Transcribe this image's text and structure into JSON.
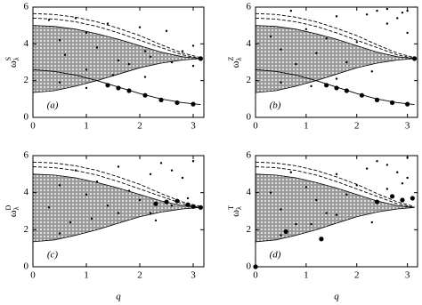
{
  "chart_data": [
    {
      "type": "line",
      "ylabel": {
        "base": "ω",
        "sub": "λ",
        "sup": "S"
      },
      "panel_label": "(a)",
      "xlim": [
        0,
        3.2
      ],
      "ylim": [
        0,
        6
      ],
      "xticks": [
        0,
        1,
        2,
        3
      ],
      "yticks": [
        0,
        2,
        4,
        6
      ],
      "x": [
        0,
        0.4,
        0.8,
        1.2,
        1.6,
        2.0,
        2.4,
        2.8,
        3.14
      ],
      "band": {
        "lower": [
          1.35,
          1.45,
          1.7,
          2.0,
          2.35,
          2.7,
          2.95,
          3.12,
          3.2
        ],
        "upper": [
          5.0,
          4.95,
          4.8,
          4.55,
          4.25,
          3.9,
          3.55,
          3.3,
          3.2
        ],
        "color": "#b8b8b8"
      },
      "dashed": [
        [
          5.65,
          5.6,
          5.45,
          5.2,
          4.85,
          4.45,
          3.95,
          3.5,
          3.25
        ],
        [
          5.4,
          5.35,
          5.2,
          4.95,
          4.6,
          4.2,
          3.8,
          3.4,
          3.2
        ]
      ],
      "curve": [
        2.6,
        2.5,
        2.3,
        2.0,
        1.65,
        1.3,
        1.0,
        0.8,
        0.7
      ],
      "points": {
        "x": [
          0.3,
          0.5,
          0.6,
          0.8,
          1.0,
          1.0,
          1.2,
          1.4,
          1.6,
          1.8,
          2.0,
          2.1,
          2.2,
          2.5,
          2.8,
          3.0,
          0.5,
          1.0,
          1.5,
          2.1,
          2.6,
          3.0
        ],
        "y": [
          5.3,
          4.2,
          3.4,
          5.4,
          2.6,
          4.6,
          3.8,
          5.1,
          3.1,
          2.9,
          4.9,
          3.6,
          3.3,
          4.7,
          3.6,
          3.9,
          1.9,
          1.6,
          2.3,
          2.2,
          3.0,
          2.8
        ]
      },
      "big_points": {
        "x": [
          1.4,
          1.6,
          1.8,
          2.1,
          2.4,
          2.7,
          3.0,
          3.14
        ],
        "y": [
          1.75,
          1.6,
          1.45,
          1.2,
          0.95,
          0.8,
          0.72,
          3.2
        ]
      },
      "color": "#000000"
    },
    {
      "type": "line",
      "ylabel": {
        "base": "ω",
        "sub": "λ",
        "sup": "Z"
      },
      "panel_label": "(b)",
      "xlim": [
        0,
        3.2
      ],
      "ylim": [
        0,
        6
      ],
      "xticks": [
        0,
        1,
        2,
        3
      ],
      "yticks": [
        0,
        2,
        4,
        6
      ],
      "x": [
        0,
        0.4,
        0.8,
        1.2,
        1.6,
        2.0,
        2.4,
        2.8,
        3.14
      ],
      "band": {
        "lower": [
          1.35,
          1.45,
          1.7,
          2.0,
          2.35,
          2.7,
          2.95,
          3.12,
          3.2
        ],
        "upper": [
          5.0,
          4.95,
          4.8,
          4.55,
          4.25,
          3.9,
          3.55,
          3.3,
          3.2
        ],
        "color": "#b8b8b8"
      },
      "dashed": [
        [
          5.65,
          5.6,
          5.45,
          5.2,
          4.85,
          4.45,
          3.95,
          3.5,
          3.25
        ],
        [
          5.4,
          5.35,
          5.2,
          4.95,
          4.6,
          4.2,
          3.8,
          3.4,
          3.2
        ]
      ],
      "curve": [
        2.6,
        2.5,
        2.3,
        2.0,
        1.65,
        1.3,
        1.0,
        0.8,
        0.7
      ],
      "points": {
        "x": [
          0.3,
          0.5,
          0.7,
          0.8,
          1.0,
          1.2,
          1.4,
          1.6,
          1.8,
          2.0,
          2.2,
          2.4,
          2.6,
          2.8,
          3.0,
          3.0,
          2.6,
          2.9,
          0.5,
          1.1,
          1.6,
          2.3
        ],
        "y": [
          4.4,
          3.7,
          5.8,
          2.9,
          4.8,
          3.5,
          4.3,
          5.5,
          3.0,
          4.1,
          5.6,
          5.8,
          5.9,
          5.4,
          4.6,
          5.8,
          5.1,
          5.7,
          1.9,
          1.7,
          2.1,
          2.5
        ]
      },
      "big_points": {
        "x": [
          1.4,
          1.6,
          1.8,
          2.1,
          2.4,
          2.7,
          3.0,
          3.14
        ],
        "y": [
          1.75,
          1.6,
          1.45,
          1.2,
          0.95,
          0.8,
          0.72,
          3.2
        ]
      },
      "color": "#000000"
    },
    {
      "type": "line",
      "ylabel": {
        "base": "ω",
        "sub": "λ",
        "sup": "D"
      },
      "panel_label": "(c)",
      "xlabel": "q",
      "xlim": [
        0,
        3.2
      ],
      "ylim": [
        0,
        6
      ],
      "xticks": [
        0,
        1,
        2,
        3
      ],
      "yticks": [
        0,
        2,
        4,
        6
      ],
      "x": [
        0,
        0.4,
        0.8,
        1.2,
        1.6,
        2.0,
        2.4,
        2.8,
        3.14
      ],
      "band": {
        "lower": [
          1.35,
          1.45,
          1.7,
          2.0,
          2.35,
          2.7,
          2.95,
          3.12,
          3.2
        ],
        "upper": [
          5.0,
          4.95,
          4.8,
          4.55,
          4.25,
          3.9,
          3.55,
          3.3,
          3.2
        ],
        "color": "#b8b8b8"
      },
      "dashed": [
        [
          5.65,
          5.6,
          5.45,
          5.2,
          4.85,
          4.45,
          3.95,
          3.5,
          3.25
        ],
        [
          5.4,
          5.35,
          5.2,
          4.95,
          4.6,
          4.2,
          3.8,
          3.4,
          3.2
        ]
      ],
      "points": {
        "x": [
          0.3,
          0.5,
          0.7,
          0.8,
          1.0,
          1.2,
          1.4,
          1.6,
          1.8,
          2.0,
          2.2,
          2.4,
          2.6,
          2.8,
          3.0,
          2.2,
          2.6,
          2.9,
          0.5,
          1.1,
          1.6,
          2.3
        ],
        "y": [
          3.2,
          4.4,
          2.4,
          5.2,
          3.9,
          4.6,
          3.3,
          5.4,
          4.1,
          3.6,
          5.0,
          5.6,
          5.2,
          4.8,
          5.7,
          2.9,
          3.3,
          3.7,
          1.8,
          2.6,
          2.9,
          2.5
        ]
      },
      "big_points": {
        "x": [
          2.3,
          2.5,
          2.7,
          2.9,
          3.0,
          3.14
        ],
        "y": [
          3.4,
          3.5,
          3.55,
          3.35,
          3.25,
          3.2
        ]
      },
      "color": "#000000"
    },
    {
      "type": "line",
      "ylabel": {
        "base": "ω",
        "sub": "λ",
        "sup": "T"
      },
      "panel_label": "(d)",
      "xlabel": "q",
      "xlim": [
        0,
        3.2
      ],
      "ylim": [
        0,
        6
      ],
      "xticks": [
        0,
        1,
        2,
        3
      ],
      "yticks": [
        0,
        2,
        4,
        6
      ],
      "x": [
        0,
        0.4,
        0.8,
        1.2,
        1.6,
        2.0,
        2.4,
        2.8,
        3.14
      ],
      "band": {
        "lower": [
          1.35,
          1.45,
          1.7,
          2.0,
          2.35,
          2.7,
          2.95,
          3.12,
          3.2
        ],
        "upper": [
          5.0,
          4.95,
          4.8,
          4.55,
          4.25,
          3.9,
          3.55,
          3.3,
          3.2
        ],
        "color": "#b8b8b8"
      },
      "dashed": [
        [
          5.65,
          5.6,
          5.45,
          5.2,
          4.85,
          4.45,
          3.95,
          3.5,
          3.25
        ],
        [
          5.4,
          5.35,
          5.2,
          4.95,
          4.6,
          4.2,
          3.8,
          3.4,
          3.2
        ]
      ],
      "points": {
        "x": [
          0.3,
          0.5,
          0.7,
          0.8,
          1.0,
          1.2,
          1.4,
          1.6,
          1.8,
          2.0,
          2.2,
          2.4,
          2.6,
          2.8,
          3.0,
          3.0,
          2.6,
          2.9,
          0.5,
          1.1,
          1.6,
          2.3
        ],
        "y": [
          4.0,
          3.1,
          5.1,
          2.3,
          4.3,
          3.6,
          2.9,
          5.0,
          3.9,
          4.4,
          5.3,
          5.7,
          5.5,
          5.1,
          4.8,
          5.9,
          4.2,
          4.5,
          1.7,
          2.3,
          2.8,
          2.4
        ]
      },
      "big_points": {
        "x": [
          0.0,
          0.6,
          1.3,
          2.4,
          2.7,
          2.9,
          3.1
        ],
        "y": [
          0.0,
          1.9,
          1.5,
          3.5,
          3.8,
          3.6,
          3.7
        ]
      },
      "color": "#000000"
    }
  ]
}
